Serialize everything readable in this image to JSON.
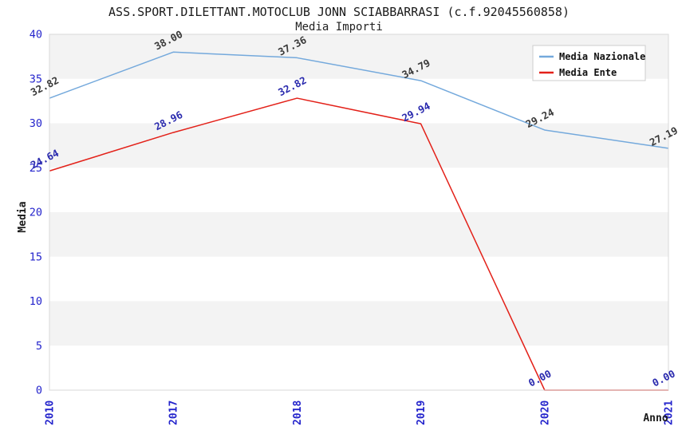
{
  "header": {
    "title": "ASS.SPORT.DILETTANT.MOTOCLUB JONN SCIABBARRASI (c.f.92045560858)",
    "subtitle": "Media Importi"
  },
  "chart_data": {
    "type": "line",
    "categories": [
      "2010",
      "2017",
      "2018",
      "2019",
      "2020",
      "2021"
    ],
    "series": [
      {
        "name": "Media Nazionale",
        "color": "#74a9dc",
        "label_color": "#3a3a3a",
        "values": [
          32.82,
          38.0,
          37.36,
          34.79,
          29.24,
          27.19
        ]
      },
      {
        "name": "Media Ente",
        "color": "#e32119",
        "label_color": "#2a2aae",
        "values": [
          24.64,
          28.96,
          32.82,
          29.94,
          0.0,
          0.0
        ]
      }
    ],
    "xlabel": "Anno",
    "ylabel": "Media",
    "ylim": [
      0,
      40
    ],
    "ytick_step": 5,
    "yticks": [
      0,
      5,
      10,
      15,
      20,
      25,
      30,
      35,
      40
    ],
    "legend_position": "top-right",
    "legend_labels": [
      "Media Nazionale",
      "Media Ente"
    ],
    "tick_color": "#2424cc",
    "band_color": "#f3f3f3",
    "plot_bg": "#ffffff",
    "border_color": "#d8d8d8",
    "grid": "banded-horizontal"
  }
}
